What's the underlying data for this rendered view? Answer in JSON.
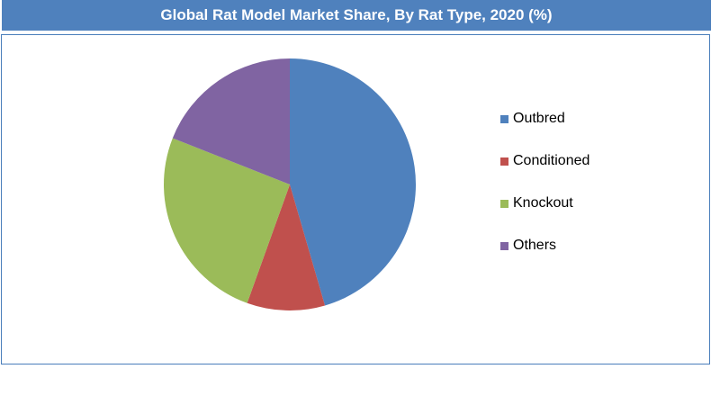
{
  "chart_data": {
    "type": "pie",
    "title": "Global Rat Model Market Share, By Rat Type, 2020 (%)",
    "categories": [
      "Outbred",
      "Conditioned",
      "Knockout",
      "Others"
    ],
    "values": [
      45.5,
      10,
      25.5,
      19
    ],
    "colors": [
      "#4f81bd",
      "#c0504d",
      "#9bbb59",
      "#8064a2"
    ],
    "legend_position": "right",
    "start_angle_deg": 0,
    "direction": "clockwise"
  },
  "theme": {
    "title_bg": "#4f81bd",
    "frame_border": "#4a7ebb"
  }
}
